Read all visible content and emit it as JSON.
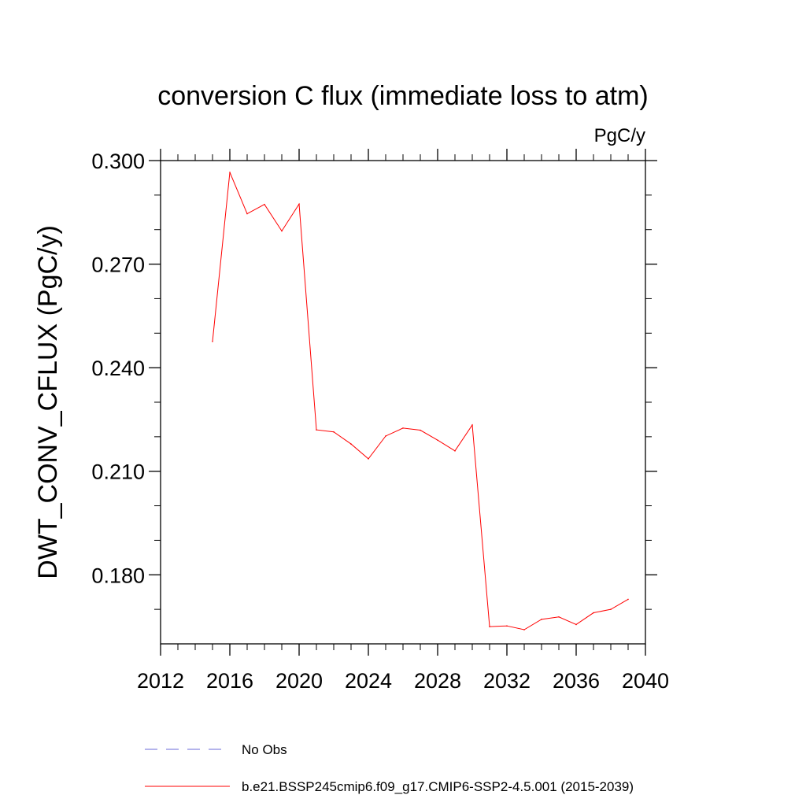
{
  "chart_data": {
    "type": "line",
    "title": "conversion C flux (immediate loss to atm)",
    "units": "PgC/y",
    "ylabel": "DWT_CONV_CFLUX  (PgC/y)",
    "xlabel": "",
    "xlim": [
      2012,
      2040
    ],
    "ylim": [
      0.16,
      0.3
    ],
    "x_ticks": [
      2012,
      2016,
      2020,
      2024,
      2028,
      2032,
      2036,
      2040
    ],
    "x_tick_labels": [
      "2012",
      "2016",
      "2020",
      "2024",
      "2028",
      "2032",
      "2036",
      "2040"
    ],
    "y_ticks": [
      0.18,
      0.21,
      0.24,
      0.27,
      0.3
    ],
    "y_tick_labels": [
      "0.180",
      "0.210",
      "0.240",
      "0.270",
      "0.300"
    ],
    "grid": false,
    "legend_position": "bottom",
    "series": [
      {
        "name": "b.e21.BSSP245cmip6.f09_g17.CMIP6-SSP2-4.5.001 (2015-2039)",
        "color": "#ff0000",
        "style": "solid",
        "x": [
          2015,
          2016,
          2017,
          2018,
          2019,
          2020,
          2021,
          2022,
          2023,
          2024,
          2025,
          2026,
          2027,
          2028,
          2029,
          2030,
          2031,
          2032,
          2033,
          2034,
          2035,
          2036,
          2037,
          2038,
          2039
        ],
        "y": [
          0.2476,
          0.2966,
          0.2846,
          0.2873,
          0.2796,
          0.2874,
          0.222,
          0.2214,
          0.2179,
          0.2136,
          0.2202,
          0.2225,
          0.2219,
          0.219,
          0.2159,
          0.2234,
          0.165,
          0.1652,
          0.1641,
          0.1671,
          0.1678,
          0.1656,
          0.169,
          0.17,
          0.1729
        ]
      }
    ],
    "legend": [
      {
        "label": "No Obs",
        "color": "#6a6ad8",
        "style": "dashed"
      },
      {
        "label": "b.e21.BSSP245cmip6.f09_g17.CMIP6-SSP2-4.5.001 (2015-2039)",
        "color": "#ff0000",
        "style": "solid"
      }
    ]
  }
}
